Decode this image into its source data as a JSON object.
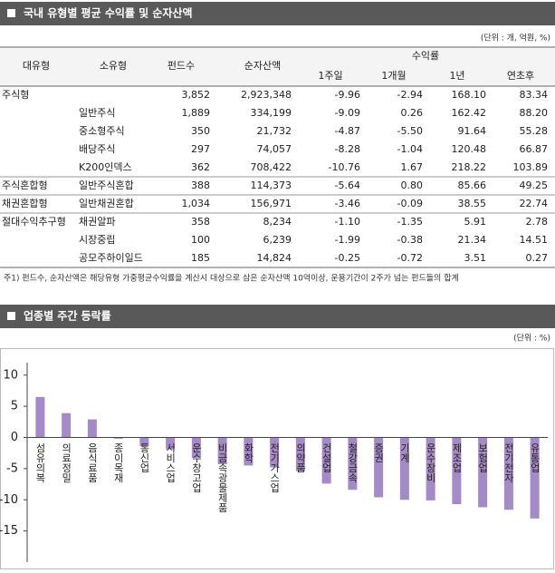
{
  "section1": {
    "title": "국내 유형별 평균 수익률 및 순자산액",
    "unit": "(단위 : 개, 억원, %)",
    "table": {
      "header": {
        "group": "대유형",
        "sub": "소유형",
        "funds": "펀드수",
        "assets": "순자산액",
        "returns": "수익률",
        "periods": [
          "1주일",
          "1개월",
          "1년",
          "연초후"
        ]
      },
      "rows": [
        {
          "group": "주식형",
          "cells": [
            "3,852",
            "2,923,348",
            "-9.96",
            "-2.94",
            "168.10",
            "83.34"
          ]
        },
        {
          "sub": "일반주식",
          "cells": [
            "1,889",
            "334,199",
            "-9.09",
            "0.26",
            "162.42",
            "88.20"
          ]
        },
        {
          "sub": "중소형주식",
          "cells": [
            "350",
            "21,732",
            "-4.87",
            "-5.50",
            "91.64",
            "55.28"
          ]
        },
        {
          "sub": "배당주식",
          "cells": [
            "297",
            "74,057",
            "-8.28",
            "-1.04",
            "120.48",
            "66.87"
          ]
        },
        {
          "sub": "K200인덱스",
          "cells": [
            "362",
            "708,422",
            "-10.76",
            "1.67",
            "218.22",
            "103.89"
          ]
        },
        {
          "group": "주식혼합형",
          "sub": "일반주식혼합",
          "cells": [
            "388",
            "114,373",
            "-5.64",
            "0.80",
            "85.66",
            "49.25"
          ]
        },
        {
          "group": "채권혼합형",
          "sub": "일반채권혼합",
          "cells": [
            "1,034",
            "156,971",
            "-3.46",
            "-0.09",
            "38.55",
            "22.74"
          ]
        },
        {
          "group": "절대수익추구형",
          "sub": "채권알파",
          "cells": [
            "358",
            "8,234",
            "-1.10",
            "-1.35",
            "5.91",
            "2.78"
          ]
        },
        {
          "sub": "시장중립",
          "cells": [
            "100",
            "6,239",
            "-1.99",
            "-0.38",
            "21.34",
            "14.51"
          ]
        },
        {
          "sub": "공모주하이일드",
          "cells": [
            "185",
            "14,824",
            "-0.25",
            "-0.72",
            "3.51",
            "0.27"
          ]
        }
      ]
    },
    "footnote": "주1) 펀드수, 순자산액은 해당유형 가중평균수익률을 계산시 대상으로 삼은 순자산액 10억이상, 운용기간이 2주가 넘는 펀드들의 합계"
  },
  "section2": {
    "title": "업종별 주간 등락률",
    "unit": "(단위 : %)"
  },
  "chart_data": {
    "type": "bar",
    "categories": [
      "섬유의복",
      "의료정밀",
      "음식료품",
      "종이목재",
      "통신업",
      "서비스업",
      "운수창고업",
      "비금속광물제품",
      "화학",
      "전기가스업",
      "의약품",
      "건설업",
      "철강금속",
      "증권",
      "기계",
      "운수장비",
      "제조업",
      "보험업",
      "전기전자",
      "유통업"
    ],
    "values": [
      6.5,
      3.9,
      2.9,
      -0.2,
      -1.4,
      -1.9,
      -3.3,
      -4.3,
      -4.5,
      -4.8,
      -5.4,
      -7.4,
      -8.4,
      -9.6,
      -10.0,
      -10.1,
      -10.7,
      -11.2,
      -11.6,
      -13.0
    ],
    "color": "#a48ac6",
    "ylim": [
      -20,
      12
    ],
    "yticks": [
      -15,
      -10,
      -5,
      0,
      5,
      10
    ],
    "grid": false
  }
}
